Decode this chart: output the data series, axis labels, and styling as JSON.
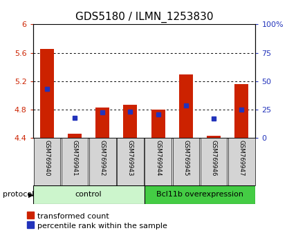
{
  "title": "GDS5180 / ILMN_1253830",
  "samples": [
    "GSM769940",
    "GSM769941",
    "GSM769942",
    "GSM769943",
    "GSM769944",
    "GSM769945",
    "GSM769946",
    "GSM769947"
  ],
  "red_values": [
    5.65,
    4.46,
    4.83,
    4.87,
    4.8,
    5.29,
    4.43,
    5.16
  ],
  "blue_values": [
    5.09,
    4.68,
    4.76,
    4.77,
    4.73,
    4.86,
    4.67,
    4.8
  ],
  "ylim_left": [
    4.4,
    6.0
  ],
  "ylim_right": [
    0,
    100
  ],
  "yticks_left": [
    4.4,
    4.8,
    5.2,
    5.6,
    6.0
  ],
  "yticks_right": [
    0,
    25,
    50,
    75,
    100
  ],
  "ytick_labels_left": [
    "4.4",
    "4.8",
    "5.2",
    "5.6",
    "6"
  ],
  "ytick_labels_right": [
    "0",
    "25",
    "50",
    "75",
    "100%"
  ],
  "grid_yticks": [
    4.8,
    5.2,
    5.6
  ],
  "control_samples": 4,
  "protocol_label": "protocol",
  "control_label": "control",
  "overexpression_label": "Bcl11b overexpression",
  "legend_red": "transformed count",
  "legend_blue": "percentile rank within the sample",
  "bar_color_red": "#cc2200",
  "bar_color_blue": "#2233bb",
  "bar_width": 0.5,
  "marker_size": 5,
  "bg_color_plot": "#ffffff",
  "bg_color_xticklabels": "#d4d4d4",
  "control_bg": "#ccf5cc",
  "overexp_bg": "#44cc44",
  "title_fontsize": 11,
  "axis_fontsize": 8,
  "legend_fontsize": 8
}
